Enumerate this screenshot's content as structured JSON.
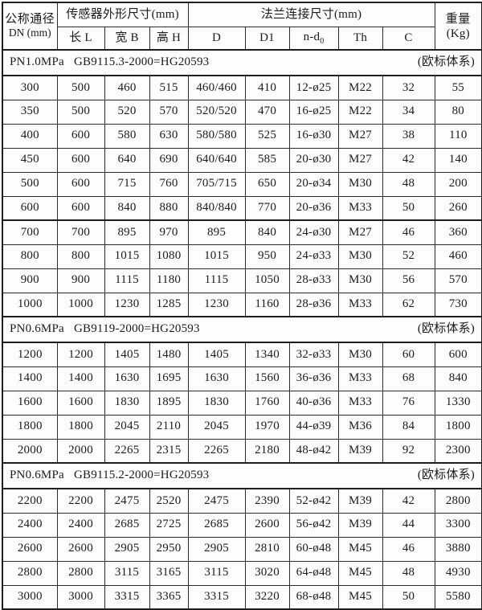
{
  "table": {
    "header": {
      "col_dn_line1": "公称通径",
      "col_dn_line2": "DN (mm)",
      "group_sensor": "传感器外形尺寸(mm)",
      "group_flange": "法兰连接尺寸(mm)",
      "col_weight_line1": "重量",
      "col_weight_line2": "(Kg)",
      "subcols": [
        "长 L",
        "宽 B",
        "高 H",
        "D",
        "D1",
        "n-d",
        "Th",
        "C"
      ],
      "ndo_sub": "0"
    },
    "sections": [
      {
        "pressure": "PN1.0MPa",
        "standard": "GB9115.3-2000=HG20593",
        "note": "(欧标体系)",
        "rows": [
          [
            "300",
            "500",
            "460",
            "515",
            "460/460",
            "410",
            "12-ø25",
            "M22",
            "32",
            "55"
          ],
          [
            "350",
            "500",
            "520",
            "570",
            "520/520",
            "470",
            "16-ø25",
            "M22",
            "34",
            "80"
          ],
          [
            "400",
            "600",
            "580",
            "630",
            "580/580",
            "525",
            "16-ø30",
            "M27",
            "38",
            "110"
          ],
          [
            "450",
            "600",
            "640",
            "690",
            "640/640",
            "585",
            "20-ø30",
            "M27",
            "42",
            "140"
          ],
          [
            "500",
            "600",
            "715",
            "760",
            "705/715",
            "650",
            "20-ø34",
            "M30",
            "48",
            "200"
          ],
          [
            "600",
            "600",
            "840",
            "880",
            "840/840",
            "770",
            "20-ø36",
            "M33",
            "50",
            "260"
          ],
          [
            "700",
            "700",
            "895",
            "970",
            "895",
            "840",
            "24-ø30",
            "M27",
            "46",
            "360"
          ],
          [
            "800",
            "800",
            "1015",
            "1080",
            "1015",
            "950",
            "24-ø33",
            "M30",
            "52",
            "460"
          ],
          [
            "900",
            "900",
            "1115",
            "1180",
            "1115",
            "1050",
            "28-ø33",
            "M30",
            "56",
            "570"
          ],
          [
            "1000",
            "1000",
            "1230",
            "1285",
            "1230",
            "1160",
            "28-ø36",
            "M33",
            "62",
            "730"
          ]
        ]
      },
      {
        "pressure": "PN0.6MPa",
        "standard": "GB9119-2000=HG20593",
        "note": "(欧标体系)",
        "rows": [
          [
            "1200",
            "1200",
            "1405",
            "1480",
            "1405",
            "1340",
            "32-ø33",
            "M30",
            "60",
            "600"
          ],
          [
            "1400",
            "1400",
            "1630",
            "1695",
            "1630",
            "1560",
            "36-ø36",
            "M33",
            "68",
            "840"
          ],
          [
            "1600",
            "1600",
            "1830",
            "1895",
            "1830",
            "1760",
            "40-ø36",
            "M33",
            "76",
            "1330"
          ],
          [
            "1800",
            "1800",
            "2045",
            "2110",
            "2045",
            "1970",
            "44-ø39",
            "M36",
            "84",
            "1800"
          ],
          [
            "2000",
            "2000",
            "2265",
            "2315",
            "2265",
            "2180",
            "48-ø42",
            "M39",
            "92",
            "2300"
          ]
        ]
      },
      {
        "pressure": "PN0.6MPa",
        "standard": "GB9115.2-2000=HG20593",
        "note": "(欧标体系)",
        "rows": [
          [
            "2200",
            "2200",
            "2475",
            "2520",
            "2475",
            "2390",
            "52-ø42",
            "M39",
            "42",
            "2800"
          ],
          [
            "2400",
            "2400",
            "2685",
            "2725",
            "2685",
            "2600",
            "56-ø42",
            "M39",
            "44",
            "3300"
          ],
          [
            "2600",
            "2600",
            "2905",
            "2950",
            "2905",
            "2810",
            "60-ø48",
            "M45",
            "46",
            "3880"
          ],
          [
            "2800",
            "2800",
            "3115",
            "3165",
            "3115",
            "3020",
            "64-ø48",
            "M45",
            "48",
            "4930"
          ],
          [
            "3000",
            "3000",
            "3315",
            "3365",
            "3315",
            "3220",
            "68-ø48",
            "M45",
            "50",
            "5580"
          ]
        ]
      }
    ]
  }
}
